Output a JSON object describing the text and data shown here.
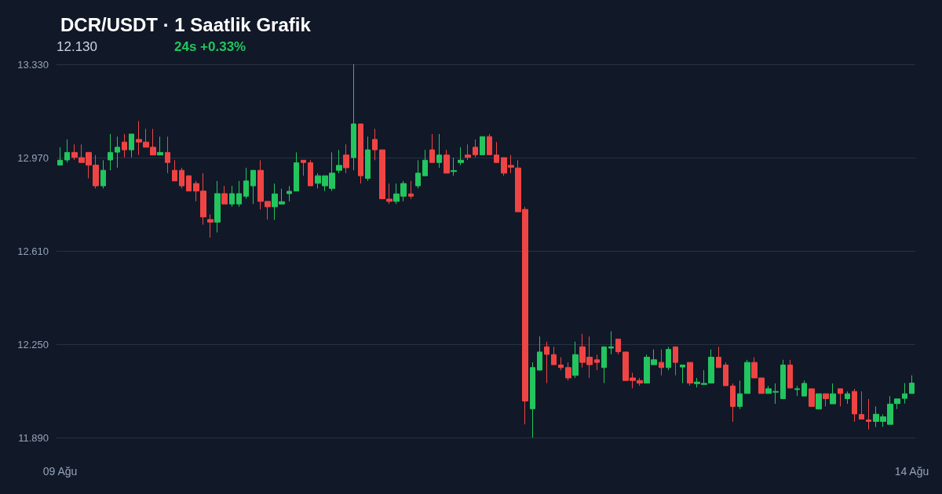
{
  "chart_data": {
    "type": "candlestick",
    "title": "DCR/USDT · 1 Saatlik Grafik",
    "annotations": [
      "12.130",
      "24s +0.33%"
    ],
    "categories": [
      "09 Ağu",
      null,
      null,
      null,
      null,
      null,
      null,
      null,
      null,
      null,
      null,
      null,
      null,
      null,
      null,
      null,
      null,
      null,
      null,
      null,
      null,
      null,
      null,
      null,
      null,
      null,
      null,
      null,
      null,
      null,
      null,
      null,
      null,
      null,
      null,
      null,
      null,
      null,
      null,
      null,
      null,
      null,
      null,
      null,
      null,
      null,
      null,
      null,
      null,
      null,
      null,
      null,
      null,
      null,
      null,
      null,
      null,
      null,
      null,
      null,
      null,
      null,
      null,
      null,
      null,
      null,
      null,
      null,
      null,
      null,
      null,
      null,
      null,
      null,
      null,
      null,
      null,
      null,
      null,
      null,
      null,
      null,
      null,
      null,
      null,
      null,
      null,
      null,
      null,
      null,
      null,
      null,
      null,
      null,
      null,
      null,
      null,
      null,
      null,
      null,
      null,
      null,
      null,
      null,
      null,
      null,
      null,
      null,
      null,
      null,
      null,
      null,
      null,
      null,
      null,
      null,
      null,
      null,
      null,
      "14 Ağu"
    ],
    "ohlc": [
      [
        12.941,
        13.01,
        12.941,
        12.96
      ],
      [
        12.961,
        13.04,
        12.951,
        12.99
      ],
      [
        12.99,
        13.021,
        12.961,
        12.971
      ],
      [
        12.97,
        13.021,
        12.951,
        12.951
      ],
      [
        12.99,
        12.99,
        12.89,
        12.941
      ],
      [
        12.941,
        12.98,
        12.851,
        12.861
      ],
      [
        12.861,
        12.96,
        12.851,
        12.921
      ],
      [
        12.961,
        13.061,
        12.921,
        12.99
      ],
      [
        12.991,
        13.051,
        12.931,
        13.01
      ],
      [
        13.03,
        13.061,
        12.971,
        13.0
      ],
      [
        13.0,
        13.061,
        12.971,
        13.061
      ],
      [
        13.04,
        13.111,
        12.98,
        13.03
      ],
      [
        13.03,
        13.081,
        13.01,
        13.01
      ],
      [
        13.01,
        13.081,
        12.98,
        12.98
      ],
      [
        12.98,
        13.051,
        12.98,
        12.99
      ],
      [
        12.99,
        13.051,
        12.91,
        12.951
      ],
      [
        12.921,
        12.96,
        12.88,
        12.88
      ],
      [
        12.921,
        12.931,
        12.851,
        12.861
      ],
      [
        12.9,
        12.9,
        12.841,
        12.841
      ],
      [
        12.87,
        12.88,
        12.801,
        12.841
      ],
      [
        12.841,
        12.91,
        12.711,
        12.741
      ],
      [
        12.731,
        12.751,
        12.661,
        12.721
      ],
      [
        12.721,
        12.88,
        12.681,
        12.831
      ],
      [
        12.831,
        12.861,
        12.791,
        12.791
      ],
      [
        12.791,
        12.861,
        12.78,
        12.831
      ],
      [
        12.791,
        12.88,
        12.78,
        12.831
      ],
      [
        12.821,
        12.931,
        12.811,
        12.88
      ],
      [
        12.861,
        12.921,
        12.791,
        12.921
      ],
      [
        12.921,
        12.96,
        12.77,
        12.801
      ],
      [
        12.801,
        12.801,
        12.731,
        12.78
      ],
      [
        12.78,
        12.87,
        12.73,
        12.83
      ],
      [
        12.791,
        12.85,
        12.791,
        12.8
      ],
      [
        12.831,
        12.86,
        12.801,
        12.84
      ],
      [
        12.841,
        12.99,
        12.841,
        12.95
      ],
      [
        12.96,
        12.96,
        12.9,
        12.951
      ],
      [
        12.95,
        12.96,
        12.861,
        12.861
      ],
      [
        12.871,
        12.91,
        12.851,
        12.9
      ],
      [
        12.861,
        12.9,
        12.841,
        12.9
      ],
      [
        12.851,
        12.99,
        12.841,
        12.91
      ],
      [
        12.921,
        13.0,
        12.91,
        12.94
      ],
      [
        12.98,
        13.021,
        12.91,
        12.931
      ],
      [
        12.97,
        13.33,
        12.921,
        13.1
      ],
      [
        13.1,
        13.1,
        12.87,
        12.9
      ],
      [
        12.89,
        13.051,
        12.88,
        13.0
      ],
      [
        13.04,
        13.081,
        12.96,
        13.0
      ],
      [
        13.0,
        13.0,
        12.811,
        12.811
      ],
      [
        12.81,
        12.87,
        12.791,
        12.801
      ],
      [
        12.801,
        12.87,
        12.791,
        12.83
      ],
      [
        12.821,
        12.88,
        12.801,
        12.87
      ],
      [
        12.83,
        12.88,
        12.811,
        12.821
      ],
      [
        12.861,
        12.96,
        12.851,
        12.91
      ],
      [
        12.9,
        13.0,
        12.9,
        12.96
      ],
      [
        13.0,
        13.061,
        12.951,
        12.951
      ],
      [
        12.951,
        13.061,
        12.931,
        12.98
      ],
      [
        12.98,
        13.0,
        12.91,
        12.91
      ],
      [
        12.916,
        12.97,
        12.9,
        12.92
      ],
      [
        12.951,
        13.01,
        12.941,
        12.96
      ],
      [
        12.98,
        13.021,
        12.961,
        12.971
      ],
      [
        13.01,
        13.04,
        12.971,
        12.981
      ],
      [
        12.981,
        13.051,
        12.981,
        13.051
      ],
      [
        13.051,
        13.061,
        12.981,
        12.981
      ],
      [
        12.98,
        13.03,
        12.951,
        12.951
      ],
      [
        12.97,
        12.97,
        12.9,
        12.91
      ],
      [
        12.94,
        12.98,
        12.91,
        12.933
      ],
      [
        12.93,
        12.96,
        12.761,
        12.761
      ],
      [
        12.77,
        12.78,
        11.941,
        12.031
      ],
      [
        12.001,
        12.18,
        11.89,
        12.16
      ],
      [
        12.15,
        12.28,
        12.15,
        12.22
      ],
      [
        12.24,
        12.26,
        12.1,
        12.211
      ],
      [
        12.21,
        12.24,
        12.171,
        12.171
      ],
      [
        12.17,
        12.2,
        12.15,
        12.16
      ],
      [
        12.16,
        12.18,
        12.11,
        12.12
      ],
      [
        12.13,
        12.26,
        12.12,
        12.21
      ],
      [
        12.24,
        12.29,
        12.16,
        12.18
      ],
      [
        12.2,
        12.28,
        12.12,
        12.171
      ],
      [
        12.19,
        12.21,
        12.15,
        12.18
      ],
      [
        12.16,
        12.24,
        12.1,
        12.24
      ],
      [
        12.235,
        12.3,
        12.211,
        12.24
      ],
      [
        12.27,
        12.27,
        12.211,
        12.221
      ],
      [
        12.22,
        12.22,
        12.11,
        12.11
      ],
      [
        12.12,
        12.14,
        12.08,
        12.11
      ],
      [
        12.11,
        12.12,
        12.09,
        12.1
      ],
      [
        12.1,
        12.21,
        12.1,
        12.2
      ],
      [
        12.171,
        12.23,
        12.171,
        12.19
      ],
      [
        12.18,
        12.23,
        12.13,
        12.16
      ],
      [
        12.16,
        12.24,
        12.15,
        12.23
      ],
      [
        12.24,
        12.24,
        12.13,
        12.18
      ],
      [
        12.162,
        12.17,
        12.1,
        12.17
      ],
      [
        12.18,
        12.18,
        12.09,
        12.1
      ],
      [
        12.098,
        12.12,
        12.083,
        12.104
      ],
      [
        12.095,
        12.15,
        12.095,
        12.099
      ],
      [
        12.1,
        12.23,
        12.1,
        12.2
      ],
      [
        12.2,
        12.24,
        12.16,
        12.16
      ],
      [
        12.17,
        12.18,
        12.09,
        12.09
      ],
      [
        12.089,
        12.099,
        11.951,
        12.01
      ],
      [
        12.01,
        12.11,
        12.0,
        12.059
      ],
      [
        12.06,
        12.19,
        12.06,
        12.18
      ],
      [
        12.18,
        12.2,
        12.12,
        12.12
      ],
      [
        12.12,
        12.12,
        12.06,
        12.06
      ],
      [
        12.06,
        12.089,
        12.06,
        12.078
      ],
      [
        12.065,
        12.099,
        12.02,
        12.068
      ],
      [
        12.04,
        12.19,
        12.04,
        12.17
      ],
      [
        12.17,
        12.19,
        12.081,
        12.081
      ],
      [
        12.075,
        12.089,
        12.05,
        12.078
      ],
      [
        12.05,
        12.11,
        12.05,
        12.099
      ],
      [
        12.078,
        12.078,
        12.01,
        12.01
      ],
      [
        12.0,
        12.059,
        12.0,
        12.059
      ],
      [
        12.059,
        12.059,
        12.01,
        12.04
      ],
      [
        12.02,
        12.099,
        12.02,
        12.059
      ],
      [
        12.078,
        12.078,
        12.01,
        12.06
      ],
      [
        12.04,
        12.068,
        12.02,
        12.059
      ],
      [
        12.068,
        12.078,
        11.951,
        11.981
      ],
      [
        11.979,
        12.068,
        11.961,
        11.961
      ],
      [
        11.958,
        12.039,
        11.921,
        11.952
      ],
      [
        11.952,
        12.01,
        11.931,
        11.98
      ],
      [
        11.952,
        11.98,
        11.931,
        11.97
      ],
      [
        11.941,
        12.05,
        11.941,
        12.019
      ],
      [
        12.021,
        12.039,
        12.0,
        12.039
      ],
      [
        12.041,
        12.1,
        12.021,
        12.059
      ],
      [
        12.06,
        12.13,
        12.06,
        12.1
      ]
    ],
    "colors": [
      "#22c55e",
      "#22c55e",
      "#ef4444",
      "#ef4444",
      "#ef4444",
      "#ef4444",
      "#22c55e",
      "#22c55e",
      "#22c55e",
      "#ef4444",
      "#22c55e",
      "#ef4444",
      "#ef4444",
      "#ef4444",
      "#22c55e",
      "#ef4444",
      "#ef4444",
      "#ef4444",
      "#ef4444",
      "#ef4444",
      "#ef4444",
      "#ef4444",
      "#22c55e",
      "#ef4444",
      "#22c55e",
      "#22c55e",
      "#22c55e",
      "#22c55e",
      "#ef4444",
      "#ef4444",
      "#22c55e",
      "#22c55e",
      "#22c55e",
      "#22c55e",
      "#ef4444",
      "#ef4444",
      "#22c55e",
      "#22c55e",
      "#22c55e",
      "#22c55e",
      "#ef4444",
      "#22c55e",
      "#ef4444",
      "#22c55e",
      "#ef4444",
      "#ef4444",
      "#ef4444",
      "#22c55e",
      "#22c55e",
      "#ef4444",
      "#22c55e",
      "#22c55e",
      "#ef4444",
      "#22c55e",
      "#ef4444",
      "#22c55e",
      "#22c55e",
      "#ef4444",
      "#ef4444",
      "#22c55e",
      "#ef4444",
      "#ef4444",
      "#ef4444",
      "#ef4444",
      "#ef4444",
      "#ef4444",
      "#22c55e",
      "#22c55e",
      "#ef4444",
      "#ef4444",
      "#ef4444",
      "#ef4444",
      "#22c55e",
      "#ef4444",
      "#ef4444",
      "#ef4444",
      "#22c55e",
      "#22c55e",
      "#ef4444",
      "#ef4444",
      "#ef4444",
      "#ef4444",
      "#22c55e",
      "#22c55e",
      "#ef4444",
      "#22c55e",
      "#ef4444",
      "#22c55e",
      "#ef4444",
      "#22c55e",
      "#22c55e",
      "#22c55e",
      "#ef4444",
      "#ef4444",
      "#ef4444",
      "#22c55e",
      "#22c55e",
      "#ef4444",
      "#ef4444",
      "#22c55e",
      "#22c55e",
      "#22c55e",
      "#ef4444",
      "#22c55e",
      "#22c55e",
      "#ef4444",
      "#22c55e",
      "#ef4444",
      "#22c55e",
      "#ef4444",
      "#22c55e",
      "#ef4444",
      "#ef4444",
      "#ef4444",
      "#22c55e",
      "#22c55e",
      "#22c55e",
      "#22c55e",
      "#22c55e",
      "#22c55e"
    ],
    "ylim": [
      11.89,
      13.33
    ],
    "yticks": [
      {
        "value": 11.89,
        "label": "11.890"
      },
      {
        "value": 12.25,
        "label": "12.250"
      },
      {
        "value": 12.61,
        "label": "12.610"
      },
      {
        "value": 12.97,
        "label": "12.970"
      },
      {
        "value": 13.33,
        "label": "13.330"
      }
    ],
    "grid": "y"
  }
}
